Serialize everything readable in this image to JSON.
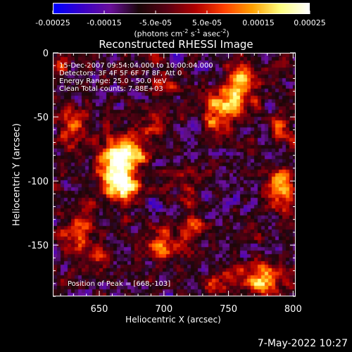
{
  "colorbar": {
    "ticks": [
      "-0.00025",
      "-0.00015",
      "-5.0e-05",
      "5.0e-05",
      "0.00015",
      "0.00025"
    ],
    "tick_values": [
      -0.00025,
      -0.00015,
      -5e-05,
      5e-05,
      0.00015,
      0.00025
    ],
    "range": [
      -0.00025,
      0.00025
    ],
    "units_main": "(photons cm",
    "units_exp1": "-2",
    "units_mid": " s",
    "units_exp2": "-1",
    "units_mid2": " asec",
    "units_exp3": "-2",
    "units_end": ")",
    "colors": [
      "#0000ff",
      "#3a00c8",
      "#6a0f9a",
      "#1a0608",
      "#5a0014",
      "#b00000",
      "#ff4000",
      "#ffa000",
      "#ffff80",
      "#ffffff"
    ]
  },
  "timestamp": "7-May-2022 10:27",
  "overlay": {
    "line1": "15-Dec-2007 09:54:04.000 to 10:00:04.000",
    "line2": "Detectors: 3F 4F 5F 6F 7F 8F, Att 0",
    "line3": "Energy Range: 25.0 - 50.0 keV",
    "line4": "Clean      Total counts: 7.88E+03",
    "peak": "Position of Peak = [668,-103]"
  },
  "chart_data": {
    "type": "heatmap",
    "title": "Reconstructed RHESSI Image",
    "xlabel": "Heliocentric X (arcsec)",
    "ylabel": "Heliocentric Y (arcsec)",
    "xlim": [
      614,
      802
    ],
    "ylim": [
      -190,
      0
    ],
    "xticks": [
      650,
      700,
      750,
      800
    ],
    "yticks": [
      0,
      -50,
      -100,
      -150
    ],
    "xtick_labels": [
      "650",
      "700",
      "750",
      "800"
    ],
    "ytick_labels": [
      "0",
      "-50",
      "-100",
      "-150"
    ],
    "peak_position": [
      668,
      -103
    ],
    "hotspots": [
      {
        "x": 668,
        "y": -103,
        "amp": 1.0,
        "sx": 9,
        "sy": 9
      },
      {
        "x": 672,
        "y": -78,
        "amp": 0.85,
        "sx": 10,
        "sy": 8
      },
      {
        "x": 660,
        "y": -85,
        "amp": 0.55,
        "sx": 8,
        "sy": 12
      },
      {
        "x": 750,
        "y": -40,
        "amp": 0.8,
        "sx": 12,
        "sy": 8
      },
      {
        "x": 758,
        "y": -22,
        "amp": 0.65,
        "sx": 8,
        "sy": 10
      },
      {
        "x": 740,
        "y": -55,
        "amp": 0.45,
        "sx": 8,
        "sy": 6
      },
      {
        "x": 790,
        "y": -105,
        "amp": 0.7,
        "sx": 8,
        "sy": 12
      },
      {
        "x": 775,
        "y": -175,
        "amp": 0.75,
        "sx": 12,
        "sy": 8
      },
      {
        "x": 632,
        "y": -140,
        "amp": 0.55,
        "sx": 10,
        "sy": 10
      },
      {
        "x": 650,
        "y": -160,
        "amp": 0.5,
        "sx": 7,
        "sy": 7
      },
      {
        "x": 700,
        "y": -148,
        "amp": 0.55,
        "sx": 10,
        "sy": 8
      },
      {
        "x": 722,
        "y": -135,
        "amp": 0.4,
        "sx": 6,
        "sy": 6
      },
      {
        "x": 628,
        "y": -55,
        "amp": 0.45,
        "sx": 8,
        "sy": 10
      },
      {
        "x": 700,
        "y": -25,
        "amp": 0.4,
        "sx": 8,
        "sy": 6
      },
      {
        "x": 690,
        "y": -55,
        "amp": 0.35,
        "sx": 7,
        "sy": 7
      },
      {
        "x": 715,
        "y": -100,
        "amp": 0.35,
        "sx": 6,
        "sy": 10
      },
      {
        "x": 790,
        "y": -60,
        "amp": 0.4,
        "sx": 6,
        "sy": 8
      },
      {
        "x": 620,
        "y": -10,
        "amp": 0.35,
        "sx": 6,
        "sy": 6
      },
      {
        "x": 740,
        "y": -180,
        "amp": 0.4,
        "sx": 8,
        "sy": 6
      }
    ]
  }
}
